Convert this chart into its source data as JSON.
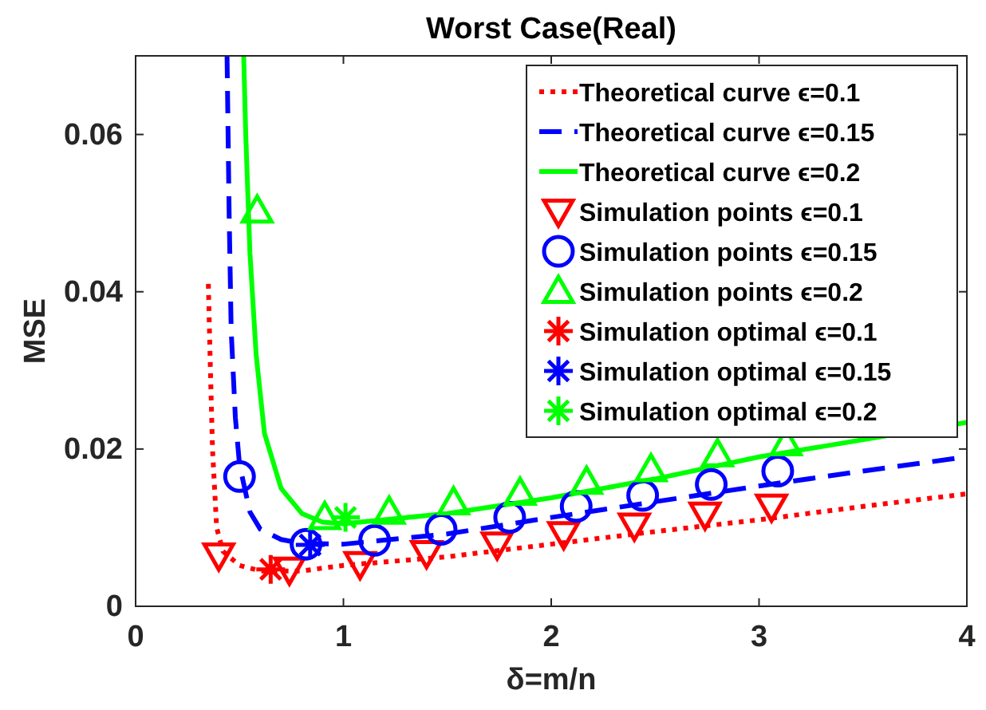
{
  "chart_data": {
    "type": "line",
    "title": "Worst Case(Real)",
    "xlabel": "δ=m/n",
    "ylabel": "MSE",
    "xlim": [
      0,
      4
    ],
    "xticks": [
      0,
      1,
      2,
      3,
      4
    ],
    "ylim": [
      0,
      0.07
    ],
    "yticks": [
      0,
      0.02,
      0.04,
      0.06
    ],
    "grid": false,
    "legend": "top right",
    "series": [
      {
        "name": "Theoretical curve ϵ=0.1",
        "color": "#ff0000",
        "line_style": "dotted",
        "marker": "none",
        "x": [
          0.35,
          0.36,
          0.37,
          0.39,
          0.42,
          0.5,
          0.6,
          0.8,
          1,
          1.5,
          2,
          2.5,
          3,
          3.5,
          4
        ],
        "values": [
          0.041,
          0.03,
          0.02,
          0.01,
          0.007,
          0.0052,
          0.0045,
          0.0045,
          0.0052,
          0.0063,
          0.0079,
          0.0095,
          0.011,
          0.0127,
          0.0143
        ]
      },
      {
        "name": "Theoretical curve ϵ=0.15",
        "color": "#0000ff",
        "line_style": "dashed",
        "marker": "none",
        "x": [
          0.44,
          0.45,
          0.46,
          0.48,
          0.5,
          0.55,
          0.6,
          0.7,
          0.8,
          1,
          1.5,
          2,
          2.5,
          3,
          3.5,
          4
        ],
        "values": [
          0.07,
          0.05,
          0.035,
          0.024,
          0.018,
          0.012,
          0.0098,
          0.0085,
          0.008,
          0.0079,
          0.0092,
          0.0113,
          0.0133,
          0.0153,
          0.0172,
          0.019
        ]
      },
      {
        "name": "Theoretical curve ϵ=0.2",
        "color": "#00ff00",
        "line_style": "solid",
        "marker": "none",
        "x": [
          0.52,
          0.53,
          0.55,
          0.58,
          0.62,
          0.7,
          0.8,
          0.9,
          1,
          1.5,
          2,
          2.5,
          3,
          3.3,
          4
        ],
        "values": [
          0.07,
          0.06,
          0.045,
          0.032,
          0.022,
          0.015,
          0.0118,
          0.0107,
          0.0105,
          0.0118,
          0.0138,
          0.0162,
          0.019,
          0.0203,
          0.0234
        ]
      },
      {
        "name": "Simulation points ϵ=0.1",
        "type": "scatter",
        "color": "#ff0000",
        "marker": "triangle-down",
        "x": [
          0.4,
          0.74,
          1.08,
          1.4,
          1.74,
          2.06,
          2.4,
          2.74,
          3.06
        ],
        "values": [
          0.0065,
          0.0047,
          0.0054,
          0.0068,
          0.0079,
          0.0092,
          0.0103,
          0.0117,
          0.0127
        ]
      },
      {
        "name": "Simulation points ϵ=0.15",
        "type": "scatter",
        "color": "#0000ff",
        "marker": "circle",
        "x": [
          0.5,
          0.82,
          1.15,
          1.47,
          1.8,
          2.12,
          2.44,
          2.77,
          3.09
        ],
        "values": [
          0.0165,
          0.0079,
          0.0084,
          0.0098,
          0.0113,
          0.0127,
          0.0141,
          0.0155,
          0.0172
        ]
      },
      {
        "name": "Simulation points ϵ=0.2",
        "type": "scatter",
        "color": "#00ff00",
        "marker": "triangle",
        "x": [
          0.585,
          0.91,
          1.22,
          1.53,
          1.85,
          2.17,
          2.48,
          2.8,
          3.13
        ],
        "values": [
          0.0503,
          0.0113,
          0.012,
          0.0132,
          0.0144,
          0.0158,
          0.0174,
          0.0193,
          0.0207
        ]
      },
      {
        "name": "Simulation optimal ϵ=0.1",
        "type": "scatter",
        "color": "#ff0000",
        "marker": "cross",
        "x": [
          0.65
        ],
        "values": [
          0.0047
        ]
      },
      {
        "name": "Simulation optimal ϵ=0.15",
        "type": "scatter",
        "color": "#0000ff",
        "marker": "cross",
        "x": [
          0.84
        ],
        "values": [
          0.0078
        ]
      },
      {
        "name": "Simulation optimal ϵ=0.2",
        "type": "scatter",
        "color": "#00ff00",
        "marker": "cross",
        "x": [
          1.01
        ],
        "values": [
          0.0113
        ]
      }
    ]
  }
}
